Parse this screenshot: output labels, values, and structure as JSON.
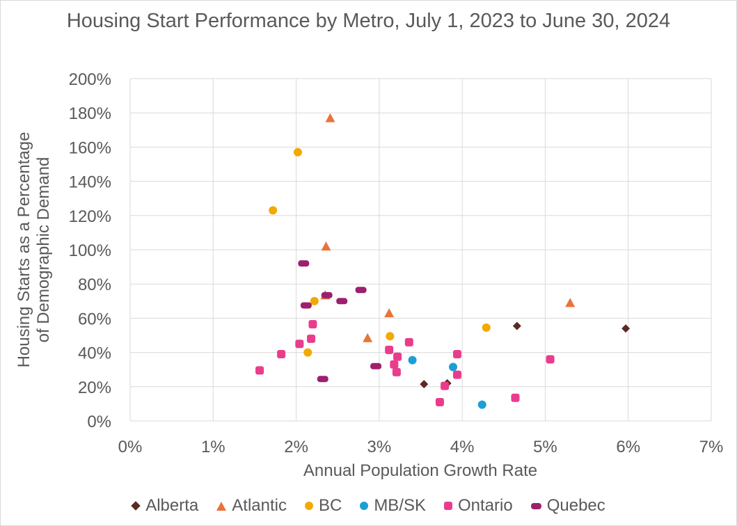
{
  "chart_data": {
    "type": "scatter",
    "title": "Housing Start Performance by Metro, July 1, 2023 to June 30, 2024",
    "xlabel": "Annual Population Growth Rate",
    "ylabel": "Housing Starts as a Percentage of Demographic Demand",
    "xlim": [
      0,
      0.07
    ],
    "ylim": [
      0,
      2.0
    ],
    "x_ticks": [
      "0%",
      "1%",
      "2%",
      "3%",
      "4%",
      "5%",
      "6%",
      "7%"
    ],
    "y_ticks": [
      "0%",
      "20%",
      "40%",
      "60%",
      "80%",
      "100%",
      "120%",
      "140%",
      "160%",
      "180%",
      "200%"
    ],
    "grid": true,
    "legend_position": "bottom",
    "series": [
      {
        "name": "Alberta",
        "marker": "diamond",
        "color": "#5b2a23",
        "points": [
          [
            0.0354,
            0.215
          ],
          [
            0.0382,
            0.22
          ],
          [
            0.0466,
            0.555
          ],
          [
            0.0597,
            0.54
          ]
        ]
      },
      {
        "name": "Atlantic",
        "marker": "triangle",
        "color": "#e8743b",
        "points": [
          [
            0.0241,
            1.77
          ],
          [
            0.0236,
            1.02
          ],
          [
            0.0235,
            0.735
          ],
          [
            0.0312,
            0.63
          ],
          [
            0.0286,
            0.485
          ],
          [
            0.053,
            0.69
          ]
        ]
      },
      {
        "name": "BC",
        "marker": "circle",
        "color": "#f2a900",
        "points": [
          [
            0.0202,
            1.57
          ],
          [
            0.0172,
            1.23
          ],
          [
            0.0222,
            0.7
          ],
          [
            0.0313,
            0.495
          ],
          [
            0.0214,
            0.4
          ],
          [
            0.0429,
            0.545
          ]
        ]
      },
      {
        "name": "MB/SK",
        "marker": "circle",
        "color": "#1a9fd7",
        "points": [
          [
            0.034,
            0.355
          ],
          [
            0.0389,
            0.315
          ],
          [
            0.0424,
            0.095
          ]
        ]
      },
      {
        "name": "Ontario",
        "marker": "rounded-square",
        "color": "#ea3c8c",
        "points": [
          [
            0.0156,
            0.295
          ],
          [
            0.0182,
            0.39
          ],
          [
            0.0204,
            0.45
          ],
          [
            0.0218,
            0.48
          ],
          [
            0.022,
            0.565
          ],
          [
            0.0312,
            0.415
          ],
          [
            0.0318,
            0.33
          ],
          [
            0.0322,
            0.375
          ],
          [
            0.0321,
            0.285
          ],
          [
            0.0336,
            0.46
          ],
          [
            0.0373,
            0.11
          ],
          [
            0.0379,
            0.205
          ],
          [
            0.0394,
            0.39
          ],
          [
            0.0394,
            0.27
          ],
          [
            0.0464,
            0.135
          ],
          [
            0.0506,
            0.36
          ]
        ]
      },
      {
        "name": "Quebec",
        "marker": "pill",
        "color": "#9e1f6e",
        "points": [
          [
            0.0209,
            0.92
          ],
          [
            0.0212,
            0.675
          ],
          [
            0.0237,
            0.735
          ],
          [
            0.0255,
            0.7
          ],
          [
            0.0278,
            0.765
          ],
          [
            0.0296,
            0.32
          ],
          [
            0.0232,
            0.245
          ]
        ]
      }
    ]
  }
}
